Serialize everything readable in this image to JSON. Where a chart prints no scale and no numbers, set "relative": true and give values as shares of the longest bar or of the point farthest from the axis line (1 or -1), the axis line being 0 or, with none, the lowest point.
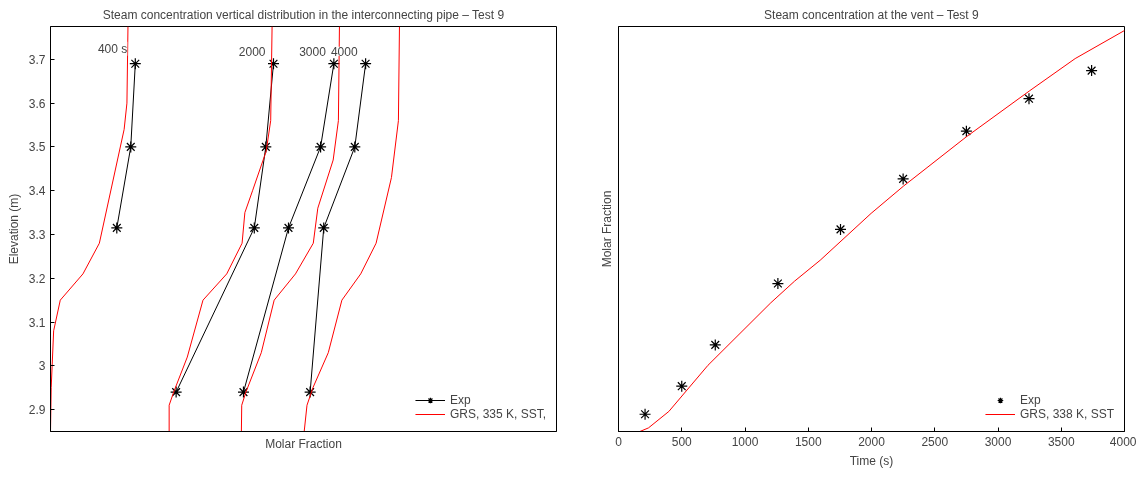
{
  "chart_data": [
    {
      "type": "line",
      "orientation": "horizontal",
      "title": "Steam concentration vertical distribution in the interconnecting pipe – Test 9",
      "xlabel": "Molar Fraction",
      "ylabel": "Elevation (m)",
      "relative": true,
      "tick_labels": "y",
      "ylim": [
        2.85,
        3.775
      ],
      "yticks": [
        {
          "value": 2.9,
          "label": "2.9"
        },
        {
          "value": 3.0,
          "label": "3"
        },
        3.1,
        3.2,
        3.3,
        3.4,
        3.5,
        3.6,
        3.7
      ],
      "grid": false,
      "legend": "bottom right",
      "line_style": "solid",
      "series": [
        {
          "name": "Exp",
          "color": "#000000",
          "marker": "cross",
          "values": [
            0.243,
            0.23,
            0.19
          ],
          "x": [
            3.69,
            3.5,
            3.315
          ]
        },
        {
          "color": "#000000",
          "marker": "cross",
          "values": [
            0.639,
            0.617,
            0.584,
            0.36
          ],
          "x": [
            3.69,
            3.5,
            3.315,
            2.94
          ]
        },
        {
          "color": "#000000",
          "marker": "cross",
          "values": [
            0.812,
            0.774,
            0.682,
            0.553
          ],
          "x": [
            3.69,
            3.5,
            3.315,
            2.94
          ]
        },
        {
          "color": "#000000",
          "marker": "cross",
          "values": [
            0.903,
            0.872,
            0.783,
            0.744
          ],
          "x": [
            3.69,
            3.5,
            3.315,
            2.94
          ]
        },
        {
          "name": "GRS, 335 K, SST,",
          "color": "#ff0000",
          "marker": "none",
          "values": [
            0.222,
            0.219,
            0.211,
            0.14,
            0.093,
            0.028,
            0.009,
            0.002,
            0
          ],
          "x": [
            3.775,
            3.6,
            3.54,
            3.28,
            3.21,
            3.15,
            3.08,
            2.95,
            2.85
          ]
        },
        {
          "color": "#ff0000",
          "marker": "none",
          "values": [
            0.635,
            0.631,
            0.618,
            0.579,
            0.557,
            0.549,
            0.505,
            0.437,
            0.392,
            0.353,
            0.34,
            0.34
          ],
          "x": [
            3.775,
            3.56,
            3.49,
            3.4,
            3.35,
            3.28,
            3.21,
            3.15,
            3.02,
            2.94,
            2.91,
            2.85
          ]
        },
        {
          "color": "#ff0000",
          "marker": "none",
          "values": [
            0.828,
            0.825,
            0.81,
            0.766,
            0.753,
            0.702,
            0.641,
            0.604,
            0.56,
            0.548,
            0.547
          ],
          "x": [
            3.775,
            3.56,
            3.47,
            3.36,
            3.28,
            3.21,
            3.15,
            3.03,
            2.94,
            2.91,
            2.85
          ]
        },
        {
          "color": "#ff0000",
          "marker": "none",
          "values": [
            1,
            0.997,
            0.977,
            0.933,
            0.889,
            0.835,
            0.796,
            0.752,
            0.735,
            0.727
          ],
          "x": [
            3.775,
            3.56,
            3.43,
            3.28,
            3.21,
            3.15,
            3.03,
            2.95,
            2.91,
            2.85
          ]
        }
      ],
      "annotations": [
        "400 s",
        "2000",
        "3000",
        "4000"
      ]
    },
    {
      "type": "line",
      "title": "Steam concentration at the vent – Test 9",
      "xlabel": "Time (s)",
      "ylabel": "Molar Fraction",
      "relative": true,
      "tick_labels": "x",
      "xlim": [
        0,
        4000
      ],
      "xticks": [
        0,
        500,
        1000,
        1500,
        2000,
        2500,
        3000,
        3500,
        4000
      ],
      "grid": false,
      "legend": "bottom right",
      "line_style": "solid",
      "series": [
        {
          "name": "Exp",
          "type": "scatter",
          "color": "#000000",
          "marker": "cross",
          "x": [
            210,
            500,
            765,
            1260,
            1755,
            2250,
            2750,
            3245,
            3740
          ],
          "values": [
            0.043,
            0.113,
            0.216,
            0.369,
            0.504,
            0.63,
            0.749,
            0.83,
            0.9
          ]
        },
        {
          "name": "GRS, 338 K, SST",
          "color": "#ff0000",
          "marker": "none",
          "x": [
            0,
            169,
            237,
            398,
            707,
            1204,
            1392,
            1594,
            1997,
            2253,
            2750,
            3247,
            3610,
            4000
          ],
          "values": [
            0,
            0,
            0.009,
            0.05,
            0.165,
            0.321,
            0.375,
            0.427,
            0.544,
            0.612,
            0.735,
            0.849,
            0.93,
            1
          ]
        }
      ]
    }
  ]
}
